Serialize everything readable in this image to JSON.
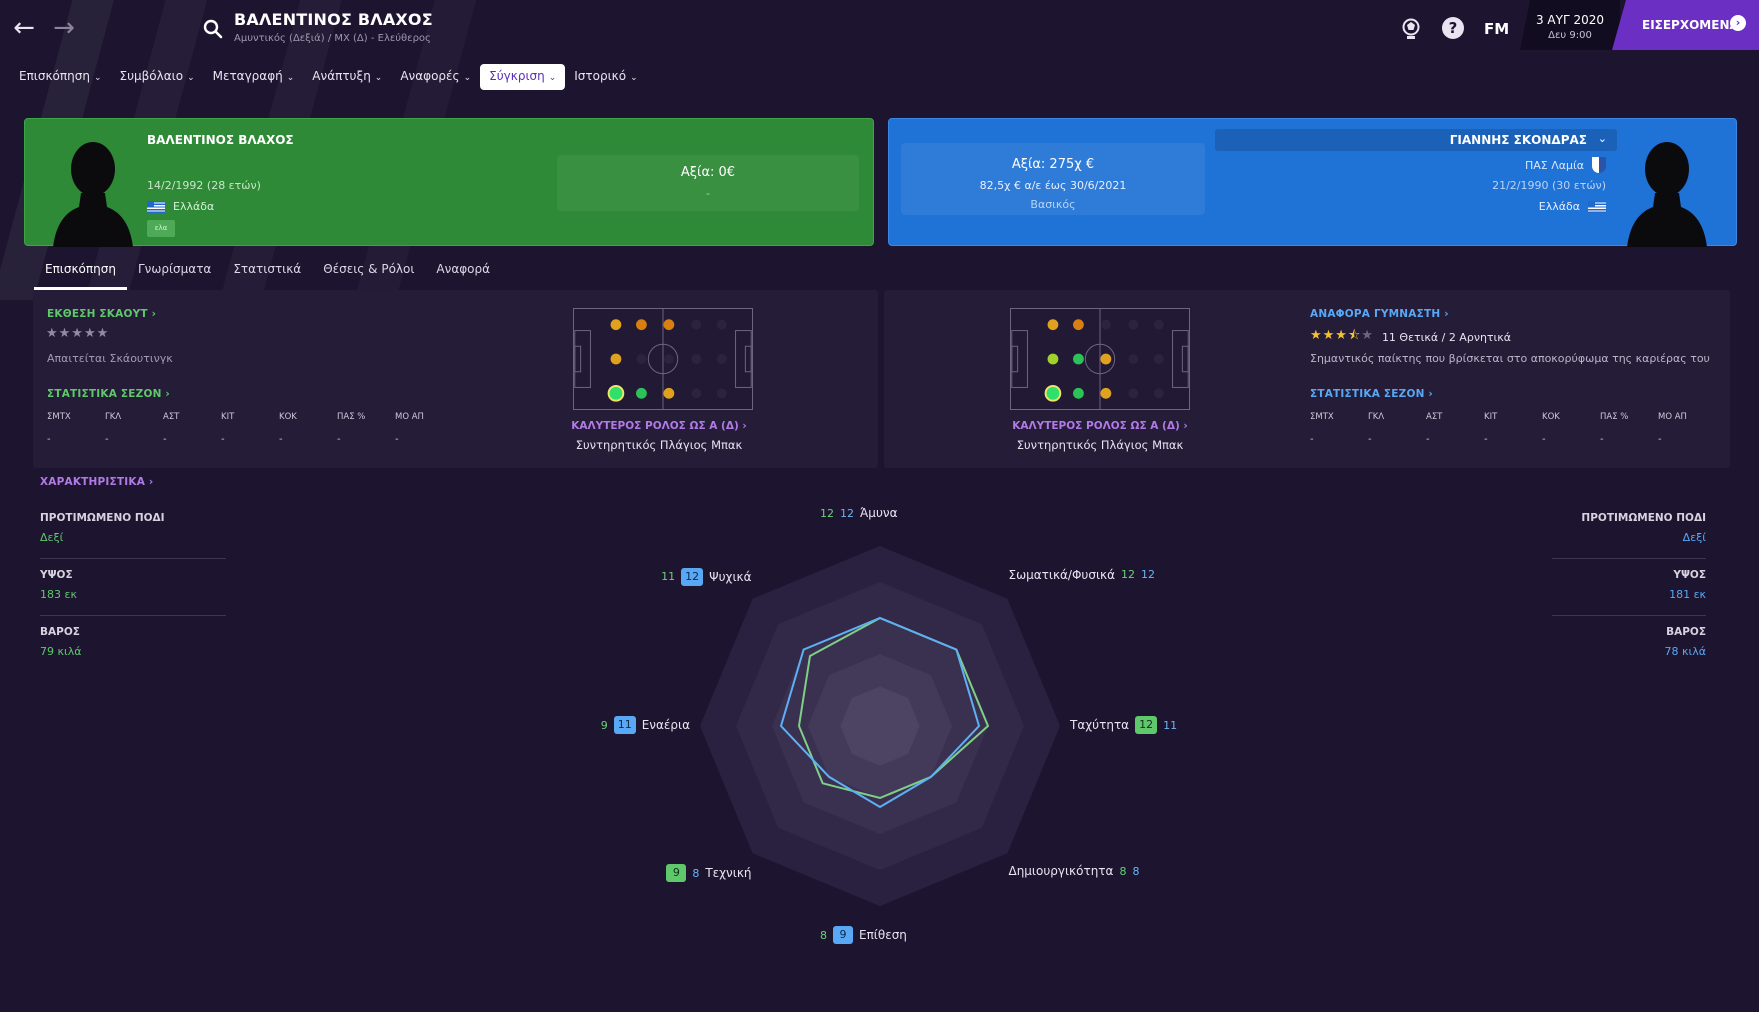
{
  "header": {
    "player_name": "ΒΑΛΕΝΤΙΝΟΣ ΒΛΑΧΟΣ",
    "player_subtitle": "Αμυντικός (Δεξιά) / ΜΧ (Δ) - Ελεύθερος",
    "fm_label": "FM",
    "date": "3 ΑΥΓ 2020",
    "time": "Δευ 9:00",
    "continue_label": "ΕΙΣΕΡΧΟΜΕΝΑ"
  },
  "menu": [
    {
      "label": "Επισκόπηση",
      "active": false
    },
    {
      "label": "Συμβόλαιο",
      "active": false
    },
    {
      "label": "Μεταγραφή",
      "active": false
    },
    {
      "label": "Ανάπτυξη",
      "active": false
    },
    {
      "label": "Αναφορές",
      "active": false
    },
    {
      "label": "Σύγκριση",
      "active": true
    },
    {
      "label": "Ιστορικό",
      "active": false
    }
  ],
  "left_player": {
    "name": "ΒΑΛΕΝΤΙΝΟΣ ΒΛΑΧΟΣ",
    "dob": "14/2/1992 (28 ετών)",
    "nationality": "Ελλάδα",
    "badge": "ελα",
    "value": "Αξία: 0€",
    "value_sub": "-"
  },
  "right_player": {
    "name": "ΓΙΑΝΝΗΣ ΣΚΟΝΔΡΑΣ",
    "club": "ΠΑΣ Λαμία",
    "dob": "21/2/1990 (30 ετών)",
    "nationality": "Ελλάδα",
    "value": "Αξία: 275χ €",
    "contract": "82,5χ € α/ε έως 30/6/2021",
    "status": "Βασικός"
  },
  "subtabs": [
    {
      "label": "Επισκόπηση",
      "active": true
    },
    {
      "label": "Γνωρίσματα",
      "active": false
    },
    {
      "label": "Στατιστικά",
      "active": false
    },
    {
      "label": "Θέσεις & Ρόλοι",
      "active": false
    },
    {
      "label": "Αναφορά",
      "active": false
    }
  ],
  "left_panel": {
    "scout_link": "ΕΚΘΕΣΗ ΣΚΑΟΥΤ",
    "stars": "★★★★★",
    "scout_note": "Απαιτείται Σκάουτινγκ",
    "season_link": "ΣΤΑΤΙΣΤΙΚΑ ΣΕΖΟΝ",
    "best_role_link": "ΚΑΛΥΤΕΡΟΣ ΡΟΛΟΣ ΩΣ Α (Δ)",
    "best_role": "Συντηρητικός Πλάγιος Μπακ"
  },
  "right_panel": {
    "coach_link": "ΑΝΑΦΟΡΑ ΓΥΜΝΑΣΤΗ",
    "rating_stars": 3.5,
    "rating_summary": "11 Θετικά / 2 Αρνητικά",
    "coach_note": "Σημαντικός παίκτης που βρίσκεται στο αποκορύφωμα της καριέρας του",
    "season_link": "ΣΤΑΤΙΣΤΙΚΑ ΣΕΖΟΝ",
    "best_role_link": "ΚΑΛΥΤΕΡΟΣ ΡΟΛΟΣ ΩΣ Α (Δ)",
    "best_role": "Συντηρητικός Πλάγιος Μπακ"
  },
  "stat_headers": [
    "ΣΜΤΧ",
    "ΓΚΛ",
    "ΑΣΤ",
    "ΚΙΤ",
    "ΚΟΚ",
    "ΠΑΣ %",
    "ΜΟ ΑΠ"
  ],
  "stat_values": [
    "-",
    "-",
    "-",
    "-",
    "-",
    "-",
    "-"
  ],
  "attributes": {
    "link": "ΧΑΡΑΚΤΗΡΙΣΤΙΚΑ",
    "foot_label": "ΠΡΟΤΙΜΩΜΕΝΟ ΠΟΔΙ",
    "height_label": "ΥΨΟΣ",
    "weight_label": "ΒΑΡΟΣ",
    "left": {
      "foot": "Δεξί",
      "height": "183 εκ",
      "weight": "79 κιλά"
    },
    "right": {
      "foot": "Δεξί",
      "height": "181 εκ",
      "weight": "78 κιλά"
    }
  },
  "radar": {
    "axes": [
      {
        "label": "Άμυνα",
        "left": 12,
        "right": 12
      },
      {
        "label": "Σωματικά/Φυσικά",
        "left": 12,
        "right": 12
      },
      {
        "label": "Ταχύτητα",
        "left": 12,
        "right": 11
      },
      {
        "label": "Δημιουργικότητα",
        "left": 8,
        "right": 8
      },
      {
        "label": "Επίθεση",
        "left": 8,
        "right": 9
      },
      {
        "label": "Τεχνική",
        "left": 9,
        "right": 8
      },
      {
        "label": "Εναέρια",
        "left": 9,
        "right": 11
      },
      {
        "label": "Ψυχικά",
        "left": 11,
        "right": 12
      }
    ],
    "max": 20,
    "left_color": "#7fcf86",
    "right_color": "#5eb0f5"
  },
  "colors": {
    "accent": "#6b2fc4",
    "left": "#2e8a36",
    "right": "#1f72d6"
  }
}
